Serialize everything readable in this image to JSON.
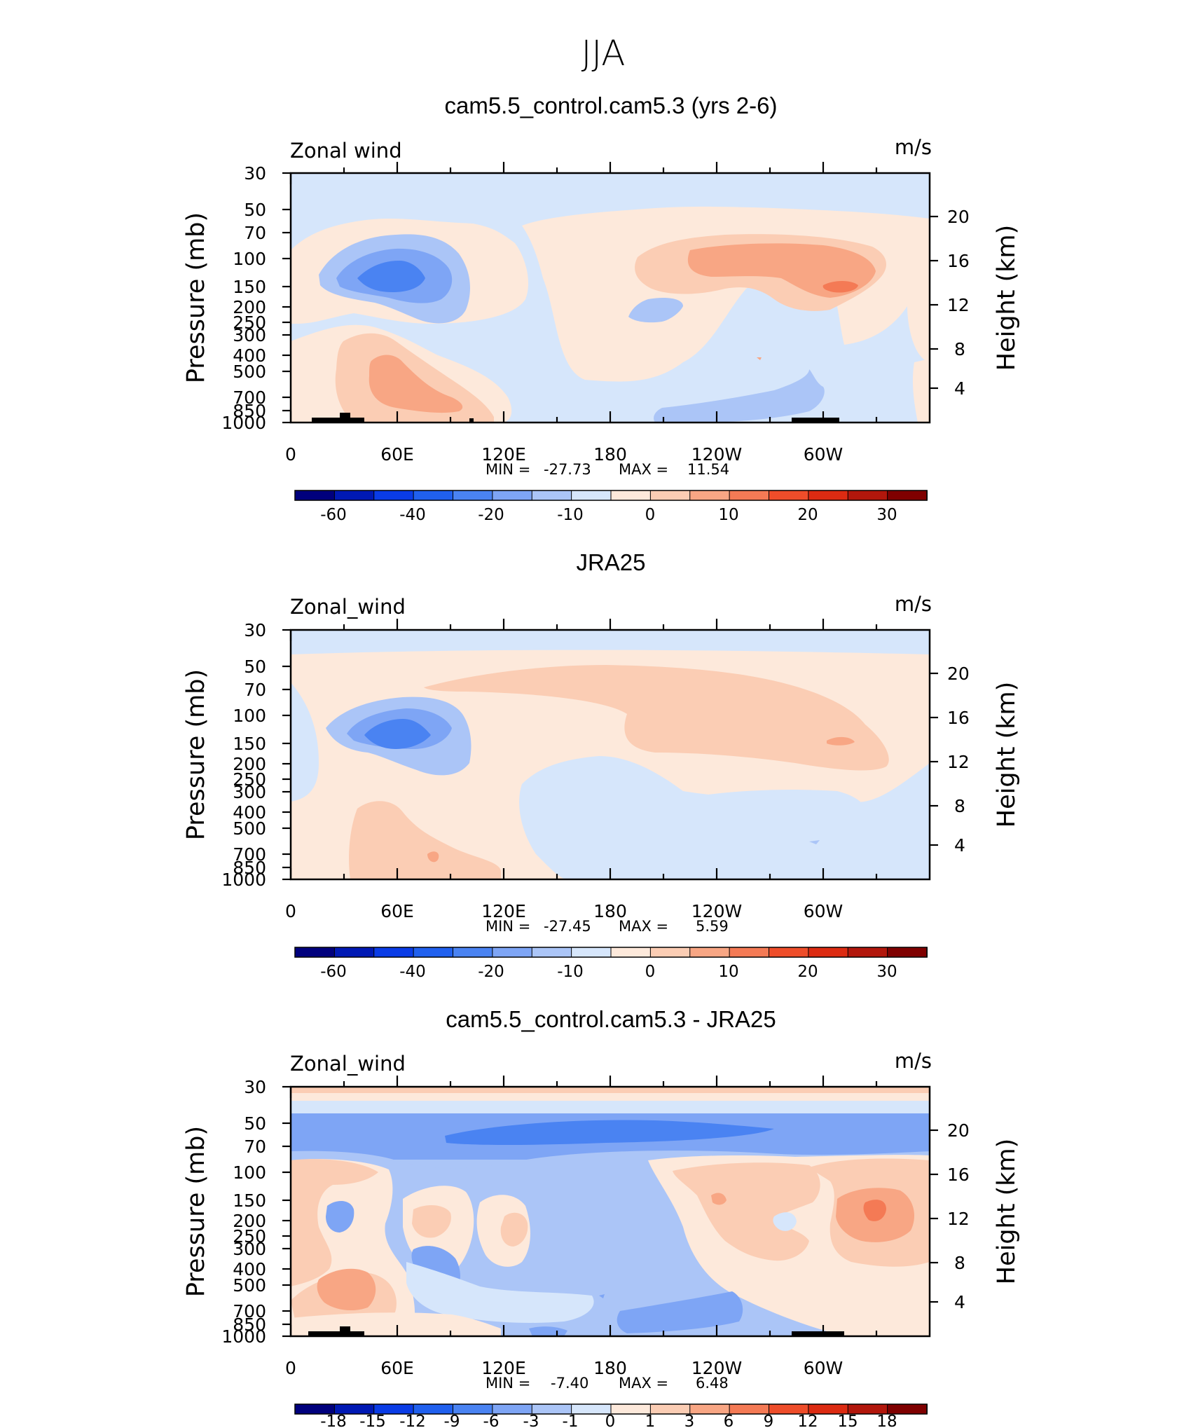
{
  "main_title": "JJA",
  "axis_text": {
    "ylabel": "Pressure (mb)",
    "ylabel_right": "Height (km)",
    "units": "m/s"
  },
  "colors": {
    "full_field": [
      "#00007d",
      "#0019b4",
      "#0a3ce6",
      "#2060ee",
      "#4a83f2",
      "#7ea5f5",
      "#abc5f7",
      "#d6e6fb",
      "#fde9db",
      "#fbcdb4",
      "#f8a684",
      "#f47a55",
      "#ee4d2a",
      "#dc2b12",
      "#b2170c",
      "#7f0000"
    ],
    "difference": [
      "#00007d",
      "#0019b4",
      "#0a3ce6",
      "#2060ee",
      "#4a83f2",
      "#7ea5f5",
      "#abc5f7",
      "#d6e6fb",
      "#fde9db",
      "#fbcdb4",
      "#f8a684",
      "#f47a55",
      "#ee4d2a",
      "#dc2b12",
      "#b2170c",
      "#7f0000"
    ]
  },
  "chart_data": [
    {
      "type": "heatmap",
      "title": "cam5.5_control.cam5.3 (yrs 2-6)",
      "variable": "Zonal wind",
      "units": "m/s",
      "ylabel": "Pressure (mb)",
      "ylabel_right": "Height (km)",
      "ylim": [
        1000,
        30
      ],
      "y_scale": "log",
      "yticks": [
        "30",
        "50",
        "70",
        "100",
        "150",
        "200",
        "250",
        "300",
        "400",
        "500",
        "700",
        "850",
        "1000"
      ],
      "yticks_right": [
        "20",
        "16",
        "12",
        "8",
        "4"
      ],
      "xlim": [
        0,
        360
      ],
      "xticks": [
        "0",
        "60E",
        "120E",
        "180",
        "120W",
        "60W"
      ],
      "stats": {
        "min_label": "MIN =",
        "min": "-27.73",
        "max_label": "MAX =",
        "max": "11.54"
      },
      "colorbar_ticks": [
        "-60",
        "-40",
        "-20",
        "-10",
        "0",
        "10",
        "20",
        "30"
      ]
    },
    {
      "type": "heatmap",
      "title": "JRA25",
      "variable": "Zonal_wind",
      "units": "m/s",
      "ylabel": "Pressure (mb)",
      "ylabel_right": "Height (km)",
      "ylim": [
        1000,
        30
      ],
      "y_scale": "log",
      "yticks": [
        "30",
        "50",
        "70",
        "100",
        "150",
        "200",
        "250",
        "300",
        "400",
        "500",
        "700",
        "850",
        "1000"
      ],
      "yticks_right": [
        "20",
        "16",
        "12",
        "8",
        "4"
      ],
      "xlim": [
        0,
        360
      ],
      "xticks": [
        "0",
        "60E",
        "120E",
        "180",
        "120W",
        "60W"
      ],
      "stats": {
        "min_label": "MIN =",
        "min": "-27.45",
        "max_label": "MAX =",
        "max": "5.59"
      },
      "colorbar_ticks": [
        "-60",
        "-40",
        "-20",
        "-10",
        "0",
        "10",
        "20",
        "30"
      ]
    },
    {
      "type": "heatmap",
      "title": "cam5.5_control.cam5.3 - JRA25",
      "variable": "Zonal_wind",
      "units": "m/s",
      "ylabel": "Pressure (mb)",
      "ylabel_right": "Height (km)",
      "ylim": [
        1000,
        30
      ],
      "y_scale": "log",
      "yticks": [
        "30",
        "50",
        "70",
        "100",
        "150",
        "200",
        "250",
        "300",
        "400",
        "500",
        "700",
        "850",
        "1000"
      ],
      "yticks_right": [
        "20",
        "16",
        "12",
        "8",
        "4"
      ],
      "xlim": [
        0,
        360
      ],
      "xticks": [
        "0",
        "60E",
        "120E",
        "180",
        "120W",
        "60W"
      ],
      "stats": {
        "min_label": "MIN =",
        "min": "-7.40",
        "max_label": "MAX =",
        "max": "6.48"
      },
      "colorbar_ticks": [
        "-18",
        "-15",
        "-12",
        "-9",
        "-6",
        "-3",
        "-1",
        "0",
        "1",
        "3",
        "6",
        "9",
        "12",
        "15",
        "18"
      ]
    }
  ]
}
